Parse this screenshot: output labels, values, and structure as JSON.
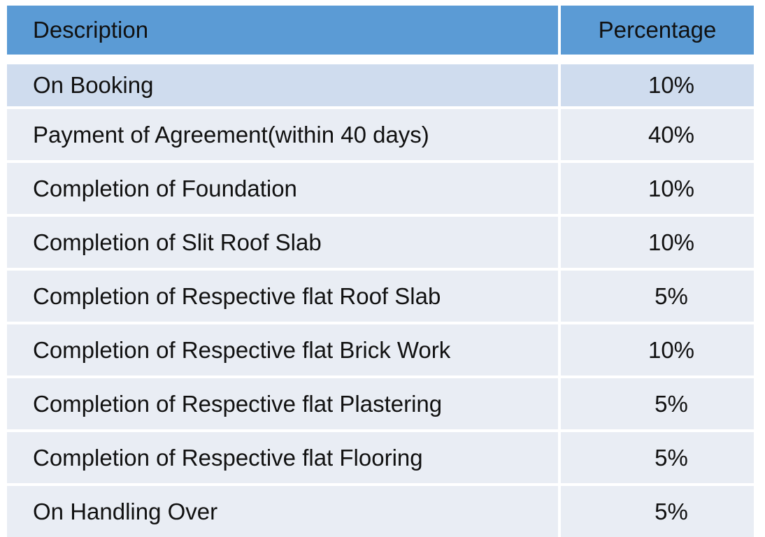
{
  "table": {
    "header": [
      "Description",
      "Percentage"
    ],
    "rows": [
      [
        "On Booking",
        "10%"
      ],
      [
        "Payment of Agreement(within 40 days)",
        "40%"
      ],
      [
        "Completion of Foundation",
        "10%"
      ],
      [
        "Completion of Slit Roof Slab",
        "10%"
      ],
      [
        "Completion of Respective flat Roof Slab",
        "5%"
      ],
      [
        "Completion of Respective flat Brick Work",
        "10%"
      ],
      [
        "Completion of Respective flat Plastering",
        "5%"
      ],
      [
        "Completion of Respective flat Flooring",
        "5%"
      ],
      [
        "On Handling Over",
        "5%"
      ]
    ]
  }
}
